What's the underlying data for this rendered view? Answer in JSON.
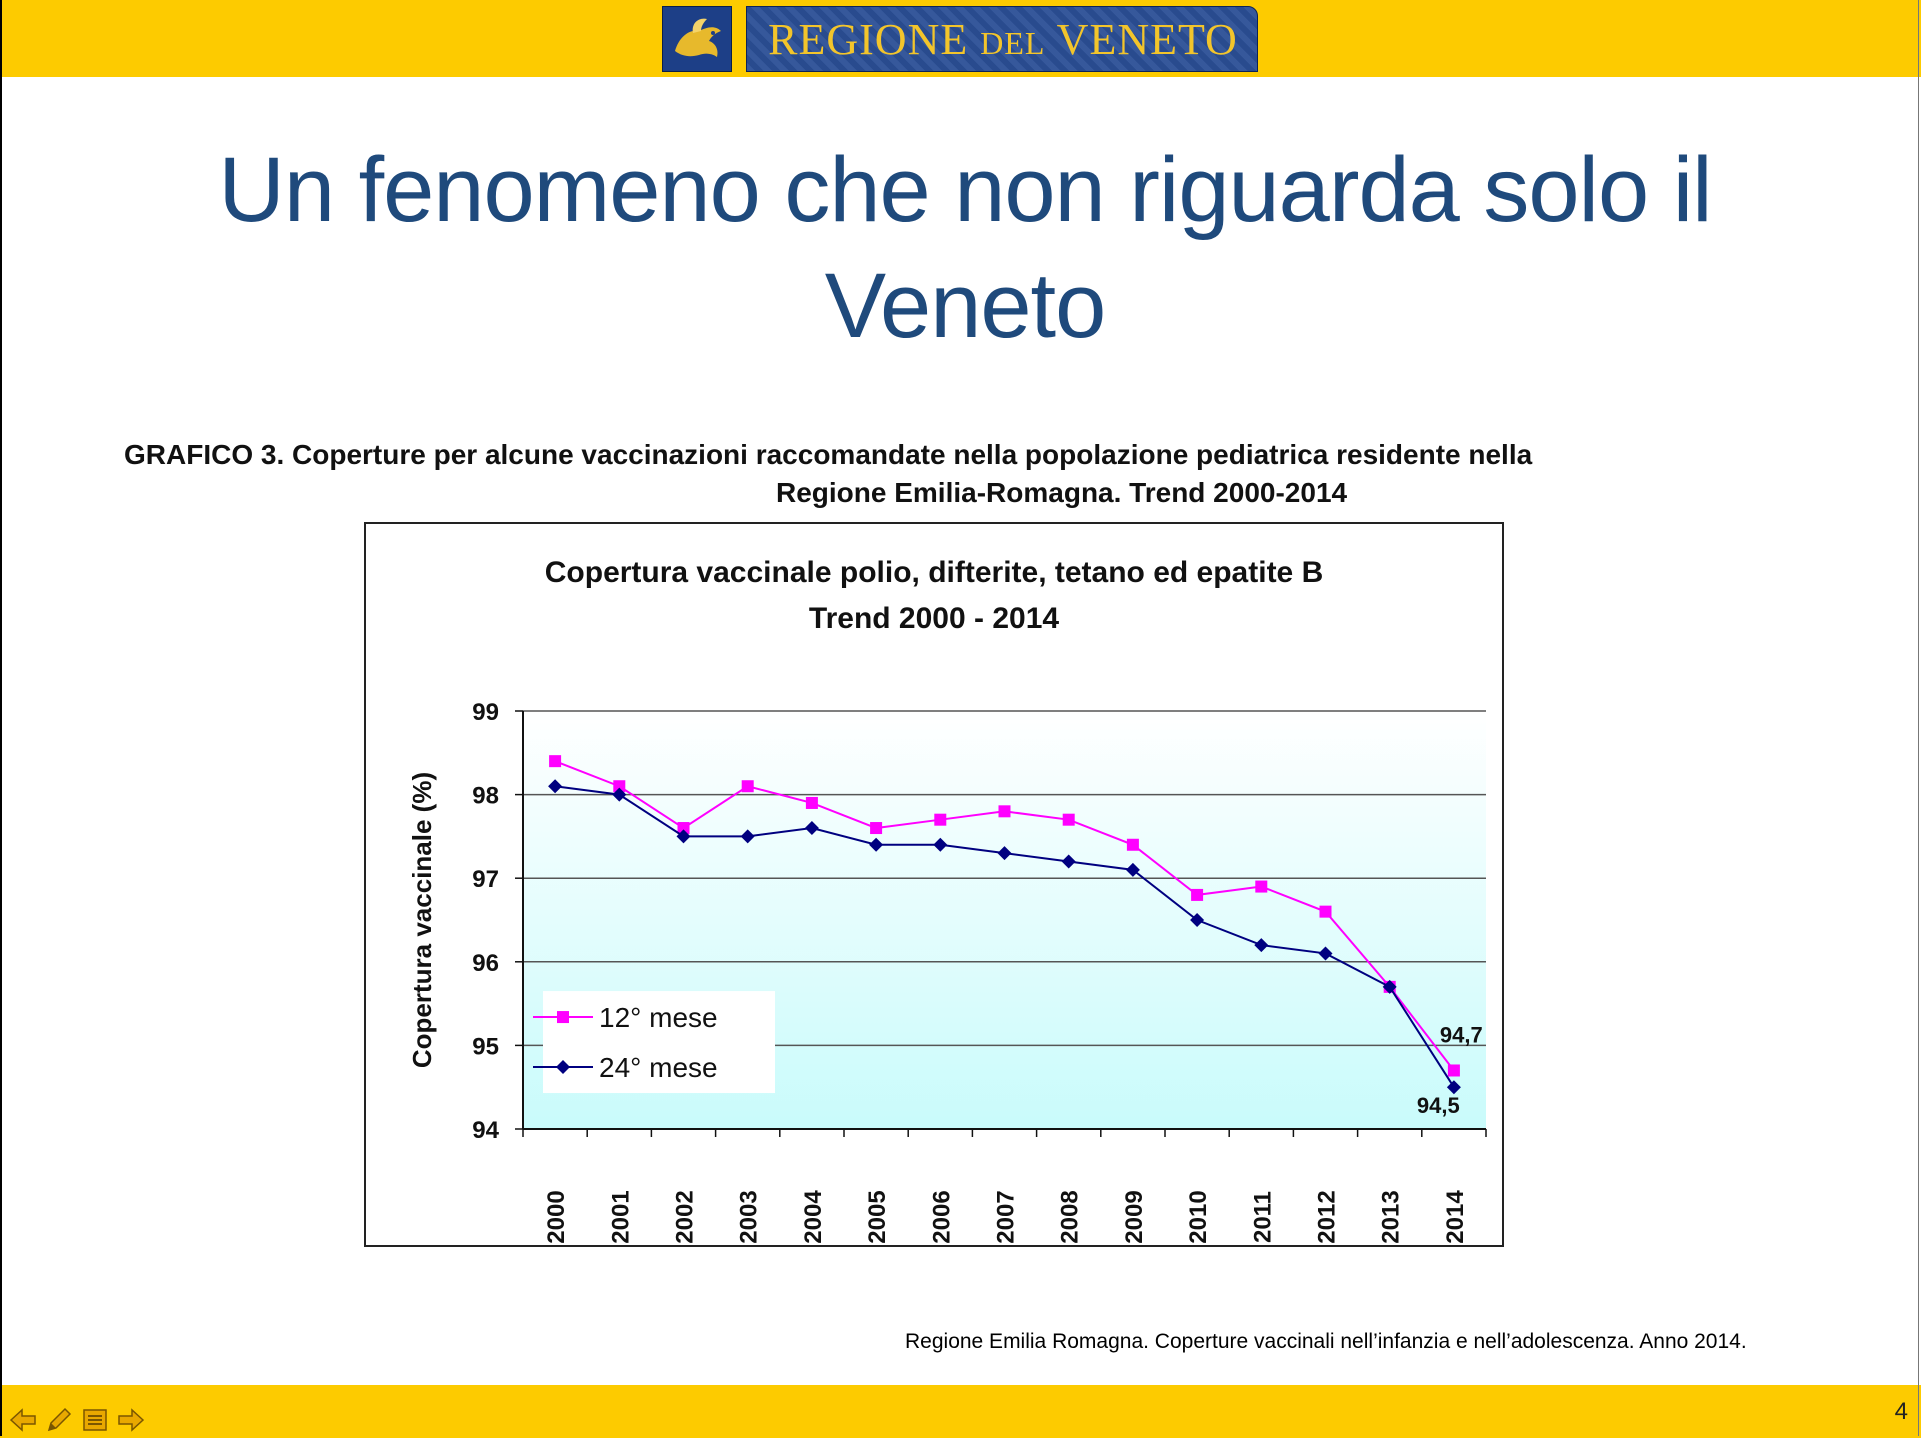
{
  "header": {
    "logo_text_main_1": "REGIONE",
    "logo_text_small": "DEL",
    "logo_text_main_2": "VENETO",
    "bar_color": "#fdcb00"
  },
  "slide": {
    "title_line1": "Un fenomeno che non riguarda solo il",
    "title_line2": "Veneto",
    "caption_line1": "GRAFICO 3.  Coperture per alcune vaccinazioni raccomandate nella popolazione pediatrica residente nella",
    "caption_line2": "Regione Emilia-Romagna. Trend 2000-2014",
    "source": "Regione Emilia Romagna. Coperture vaccinali nell’infanzia e nell’adolescenza. Anno 2014.",
    "page_number": "4"
  },
  "nav": {
    "icons": [
      "arrow-left-icon",
      "pencil-icon",
      "menu-icon",
      "arrow-right-icon"
    ]
  },
  "chart_data": {
    "type": "line",
    "title_line1": "Copertura vaccinale polio, difterite, tetano ed epatite B",
    "title_line2": "Trend 2000 - 2014",
    "xlabel": "",
    "ylabel": "Copertura vaccinale (%)",
    "ylim": [
      94,
      99
    ],
    "yticks": [
      "94",
      "95",
      "96",
      "97",
      "98",
      "99"
    ],
    "categories": [
      "2000",
      "2001",
      "2002",
      "2003",
      "2004",
      "2005",
      "2006",
      "2007",
      "2008",
      "2009",
      "2010",
      "2011",
      "2012",
      "2013",
      "2014"
    ],
    "series": [
      {
        "name": "12° mese",
        "color": "#ff00ff",
        "marker": "square",
        "values": [
          98.4,
          98.1,
          97.6,
          98.1,
          97.9,
          97.6,
          97.7,
          97.8,
          97.7,
          97.4,
          96.8,
          96.9,
          96.6,
          95.7,
          94.7
        ]
      },
      {
        "name": "24° mese",
        "color": "#000080",
        "marker": "diamond",
        "values": [
          98.1,
          98.0,
          97.5,
          97.5,
          97.6,
          97.4,
          97.4,
          97.3,
          97.2,
          97.1,
          96.5,
          96.2,
          96.1,
          95.7,
          94.5
        ]
      }
    ],
    "annotations": [
      "94,7",
      "94,5"
    ],
    "grid": true,
    "legend": "bottom-left"
  }
}
